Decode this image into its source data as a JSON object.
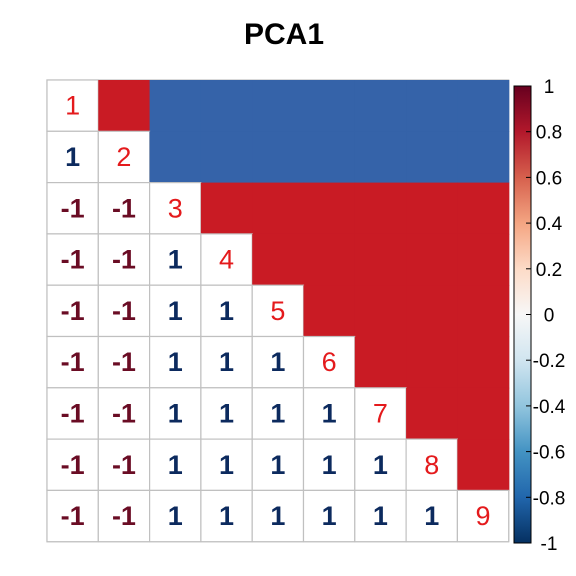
{
  "chart_data": {
    "type": "heatmap",
    "title": "PCA1",
    "labels": [
      "1",
      "2",
      "3",
      "4",
      "5",
      "6",
      "7",
      "8",
      "9"
    ],
    "matrix": [
      [
        1,
        1,
        -1,
        -1,
        -1,
        -1,
        -1,
        -1,
        -1
      ],
      [
        1,
        1,
        -1,
        -1,
        -1,
        -1,
        -1,
        -1,
        -1
      ],
      [
        -1,
        -1,
        1,
        1,
        1,
        1,
        1,
        1,
        1
      ],
      [
        -1,
        -1,
        1,
        1,
        1,
        1,
        1,
        1,
        1
      ],
      [
        -1,
        -1,
        1,
        1,
        1,
        1,
        1,
        1,
        1
      ],
      [
        -1,
        -1,
        1,
        1,
        1,
        1,
        1,
        1,
        1
      ],
      [
        -1,
        -1,
        1,
        1,
        1,
        1,
        1,
        1,
        1
      ],
      [
        -1,
        -1,
        1,
        1,
        1,
        1,
        1,
        1,
        1
      ],
      [
        -1,
        -1,
        1,
        1,
        1,
        1,
        1,
        1,
        1
      ]
    ],
    "lower_triangle": "numbers",
    "upper_triangle": "color",
    "diagonal": "labels",
    "colorbar": {
      "range": [
        -1,
        1
      ],
      "ticks": [
        1,
        0.8,
        0.6,
        0.4,
        0.2,
        0,
        -0.2,
        -0.4,
        -0.6,
        -0.8,
        -1
      ],
      "tick_labels": [
        "1",
        "0.8",
        "0.6",
        "0.4",
        "0.2",
        "0",
        "-0.2",
        "-0.4",
        "-0.6",
        "-0.8",
        "-1"
      ],
      "placement": "right",
      "colors": [
        "#053061",
        "#2166AC",
        "#4393C3",
        "#92C5DE",
        "#D1E5F0",
        "#F7F7F7",
        "#FDDBC7",
        "#F4A582",
        "#D6604D",
        "#B2182B",
        "#67001F"
      ]
    },
    "colors": {
      "positive_cell": "#C91B24",
      "negative_cell": "#3563A9",
      "positive_text": "#0C2A5E",
      "negative_text": "#6A0C24",
      "diagonal_text": "#E41A1C",
      "grid": "#C0C0C0"
    }
  }
}
